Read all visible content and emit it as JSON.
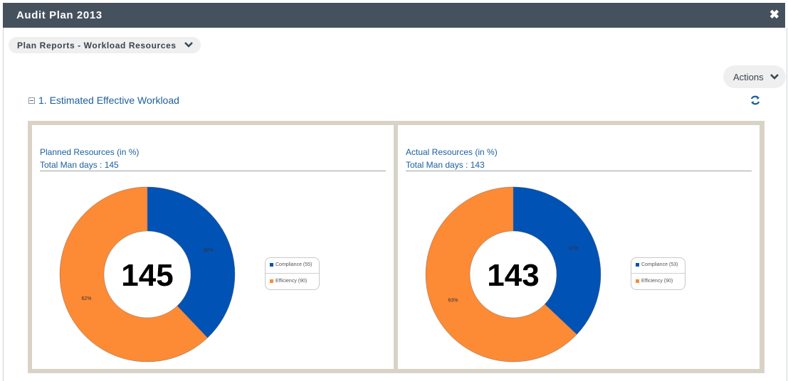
{
  "window": {
    "title": "Audit Plan 2013",
    "close_icon": "close-icon"
  },
  "report_selector": {
    "value": "Plan Reports - Workload Resources"
  },
  "actions": {
    "label": "Actions"
  },
  "section": {
    "title": "1. Estimated Effective Workload"
  },
  "colors": {
    "compliance": "#0052b4",
    "efficiency": "#fd8a35",
    "titlebar": "#46515e",
    "link": "#1a5f9e"
  },
  "chart_data": [
    {
      "type": "pie",
      "title": "Planned Resources (in %)",
      "subtitle": "Total Man days : 145",
      "center_label": "145",
      "series": [
        {
          "name": "Compliance",
          "value": 55,
          "percent_label": "38%",
          "legend_label": "Compliance (55)",
          "color": "#0052b4"
        },
        {
          "name": "Efficiency",
          "value": 90,
          "percent_label": "62%",
          "legend_label": "Efficiency (90)",
          "color": "#fd8a35"
        }
      ]
    },
    {
      "type": "pie",
      "title": "Actual Resources (in %)",
      "subtitle": "Total Man days : 143",
      "center_label": "143",
      "series": [
        {
          "name": "Compliance",
          "value": 53,
          "percent_label": "37%",
          "legend_label": "Compliance (53)",
          "color": "#0052b4"
        },
        {
          "name": "Efficiency",
          "value": 90,
          "percent_label": "63%",
          "legend_label": "Efficiency (90)",
          "color": "#fd8a35"
        }
      ]
    }
  ]
}
